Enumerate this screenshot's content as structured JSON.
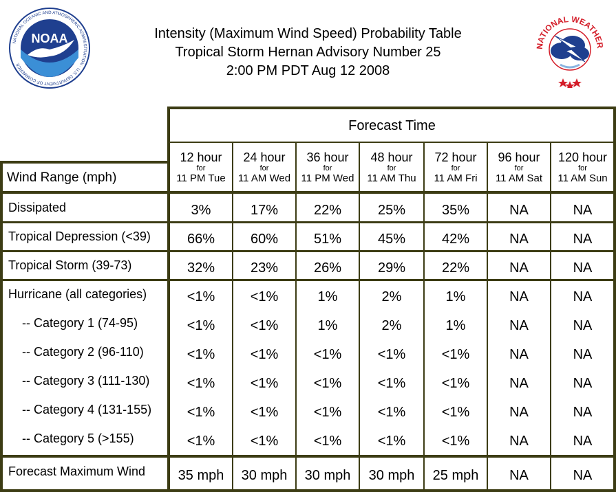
{
  "title": {
    "line1": "Intensity (Maximum Wind Speed) Probability Table",
    "line2": "Tropical Storm Hernan Advisory Number 25",
    "line3": "2:00 PM PDT Aug 12 2008"
  },
  "logos": {
    "left": {
      "text": "NOAA",
      "ring": "NATIONAL OCEANIC AND ATMOSPHERIC ADMINISTRATION · U.S. DEPARTMENT OF COMMERCE"
    },
    "right": {
      "ring": "NATIONAL WEATHER SERVICE"
    }
  },
  "table": {
    "forecast_time_label": "Forecast Time",
    "wind_range_label": "Wind Range (mph)",
    "columns": [
      {
        "hour": "12 hour",
        "for": "for",
        "when": "11 PM Tue"
      },
      {
        "hour": "24 hour",
        "for": "for",
        "when": "11 AM Wed"
      },
      {
        "hour": "36 hour",
        "for": "for",
        "when": "11 PM Wed"
      },
      {
        "hour": "48 hour",
        "for": "for",
        "when": "11 AM Thu"
      },
      {
        "hour": "72 hour",
        "for": "for",
        "when": "11 AM Fri"
      },
      {
        "hour": "96 hour",
        "for": "for",
        "when": "11 AM Sat"
      },
      {
        "hour": "120 hour",
        "for": "for",
        "when": "11 AM Sun"
      }
    ],
    "rows": [
      {
        "label": "Dissipated",
        "values": [
          "3%",
          "17%",
          "22%",
          "25%",
          "35%",
          "NA",
          "NA"
        ]
      },
      {
        "label": "Tropical Depression (<39)",
        "values": [
          "66%",
          "60%",
          "51%",
          "45%",
          "42%",
          "NA",
          "NA"
        ]
      },
      {
        "label": "Tropical Storm (39-73)",
        "values": [
          "32%",
          "23%",
          "26%",
          "29%",
          "22%",
          "NA",
          "NA"
        ]
      },
      {
        "label": "Hurricane (all categories)",
        "values": [
          "<1%",
          "<1%",
          "1%",
          "2%",
          "1%",
          "NA",
          "NA"
        ]
      },
      {
        "label": "-- Category 1 (74-95)",
        "values": [
          "<1%",
          "<1%",
          "1%",
          "2%",
          "1%",
          "NA",
          "NA"
        ]
      },
      {
        "label": "-- Category 2 (96-110)",
        "values": [
          "<1%",
          "<1%",
          "<1%",
          "<1%",
          "<1%",
          "NA",
          "NA"
        ]
      },
      {
        "label": "-- Category 3 (111-130)",
        "values": [
          "<1%",
          "<1%",
          "<1%",
          "<1%",
          "<1%",
          "NA",
          "NA"
        ]
      },
      {
        "label": "-- Category 4 (131-155)",
        "values": [
          "<1%",
          "<1%",
          "<1%",
          "<1%",
          "<1%",
          "NA",
          "NA"
        ]
      },
      {
        "label": "-- Category 5 (>155)",
        "values": [
          "<1%",
          "<1%",
          "<1%",
          "<1%",
          "<1%",
          "NA",
          "NA"
        ]
      },
      {
        "label": "Forecast Maximum Wind",
        "values": [
          "35 mph",
          "30 mph",
          "30 mph",
          "30 mph",
          "25 mph",
          "NA",
          "NA"
        ]
      }
    ]
  },
  "colors": {
    "border": "#3c3c14",
    "noaa_blue": "#1f3f8f",
    "nws_red": "#d41e2a"
  }
}
